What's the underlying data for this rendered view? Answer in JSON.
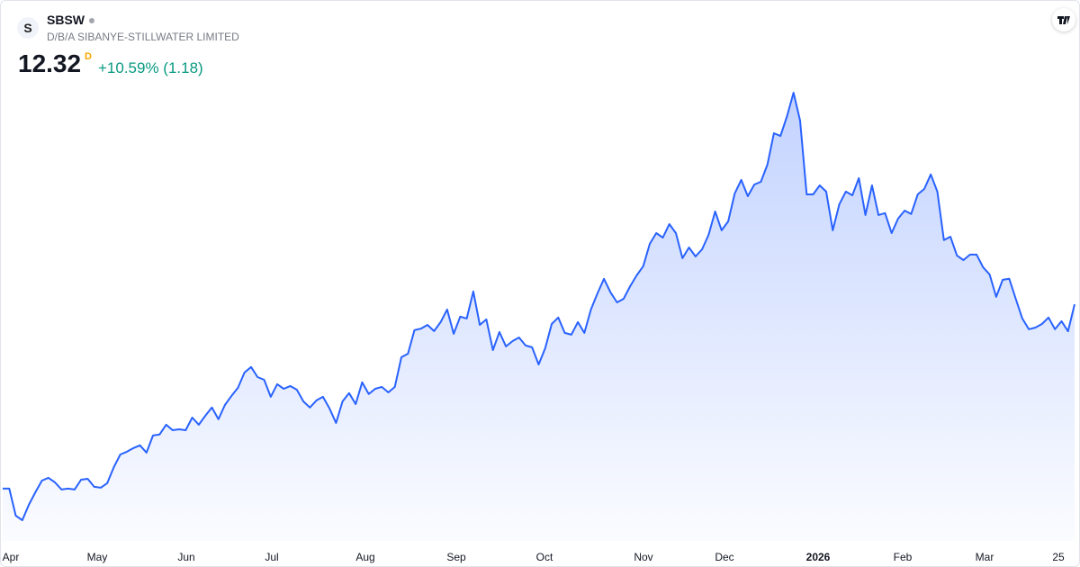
{
  "header": {
    "logo": "S",
    "symbol": "SBSW",
    "company": "D/B/A SIBANYE-STILLWATER LIMITED",
    "price": 12.32,
    "price_flag": "D",
    "change": "+10.59% (1.18)"
  },
  "chart_data": {
    "type": "area",
    "x_labels": [
      "Apr",
      "May",
      "Jun",
      "Jul",
      "Aug",
      "Sep",
      "Oct",
      "Nov",
      "Dec",
      "2026",
      "Feb",
      "Mar",
      "25"
    ],
    "series": [
      {
        "color": "#2962ff",
        "values": [
          4.27,
          4.27,
          3.09,
          2.89,
          3.56,
          4.11,
          4.62,
          4.74,
          4.54,
          4.23,
          4.27,
          4.23,
          4.66,
          4.7,
          4.35,
          4.31,
          4.51,
          5.21,
          5.76,
          5.88,
          6.04,
          6.16,
          5.84,
          6.59,
          6.63,
          7.06,
          6.82,
          6.86,
          6.82,
          7.37,
          7.06,
          7.45,
          7.81,
          7.3,
          7.92,
          8.32,
          8.67,
          9.34,
          9.58,
          9.14,
          9.02,
          8.28,
          8.83,
          8.63,
          8.75,
          8.59,
          8.08,
          7.81,
          8.12,
          8.28,
          7.77,
          7.14,
          8.08,
          8.44,
          7.96,
          8.91,
          8.4,
          8.63,
          8.71,
          8.47,
          8.71,
          10.01,
          10.16,
          11.19,
          11.26,
          11.42,
          11.15,
          11.54,
          12.09,
          11.03,
          11.78,
          11.7,
          12.88,
          11.42,
          11.66,
          10.32,
          11.11,
          10.48,
          10.71,
          10.87,
          10.52,
          10.44,
          9.69,
          10.4,
          11.46,
          11.74,
          11.07,
          10.99,
          11.54,
          11.07,
          12.09,
          12.8,
          13.43,
          12.84,
          12.4,
          12.56,
          13.11,
          13.58,
          13.98,
          14.96,
          15.43,
          15.23,
          15.82,
          15.43,
          14.33,
          14.8,
          14.41,
          14.72,
          15.35,
          16.37,
          15.55,
          15.94,
          17.16,
          17.75,
          17.04,
          17.55,
          17.67,
          18.42,
          19.79,
          19.67,
          20.54,
          21.56,
          20.34,
          17.12,
          17.12,
          17.51,
          17.24,
          15.55,
          16.69,
          17.24,
          17.08,
          17.83,
          16.22,
          17.51,
          16.22,
          16.3,
          15.43,
          16.06,
          16.41,
          16.26,
          17.12,
          17.36,
          17.99,
          17.24,
          15.12,
          15.27,
          14.45,
          14.25,
          14.49,
          14.49,
          13.94,
          13.62,
          12.64,
          13.39,
          13.43,
          12.56,
          11.7,
          11.23,
          11.3,
          11.46,
          11.74,
          11.23,
          11.58,
          11.14,
          12.32
        ]
      }
    ]
  }
}
